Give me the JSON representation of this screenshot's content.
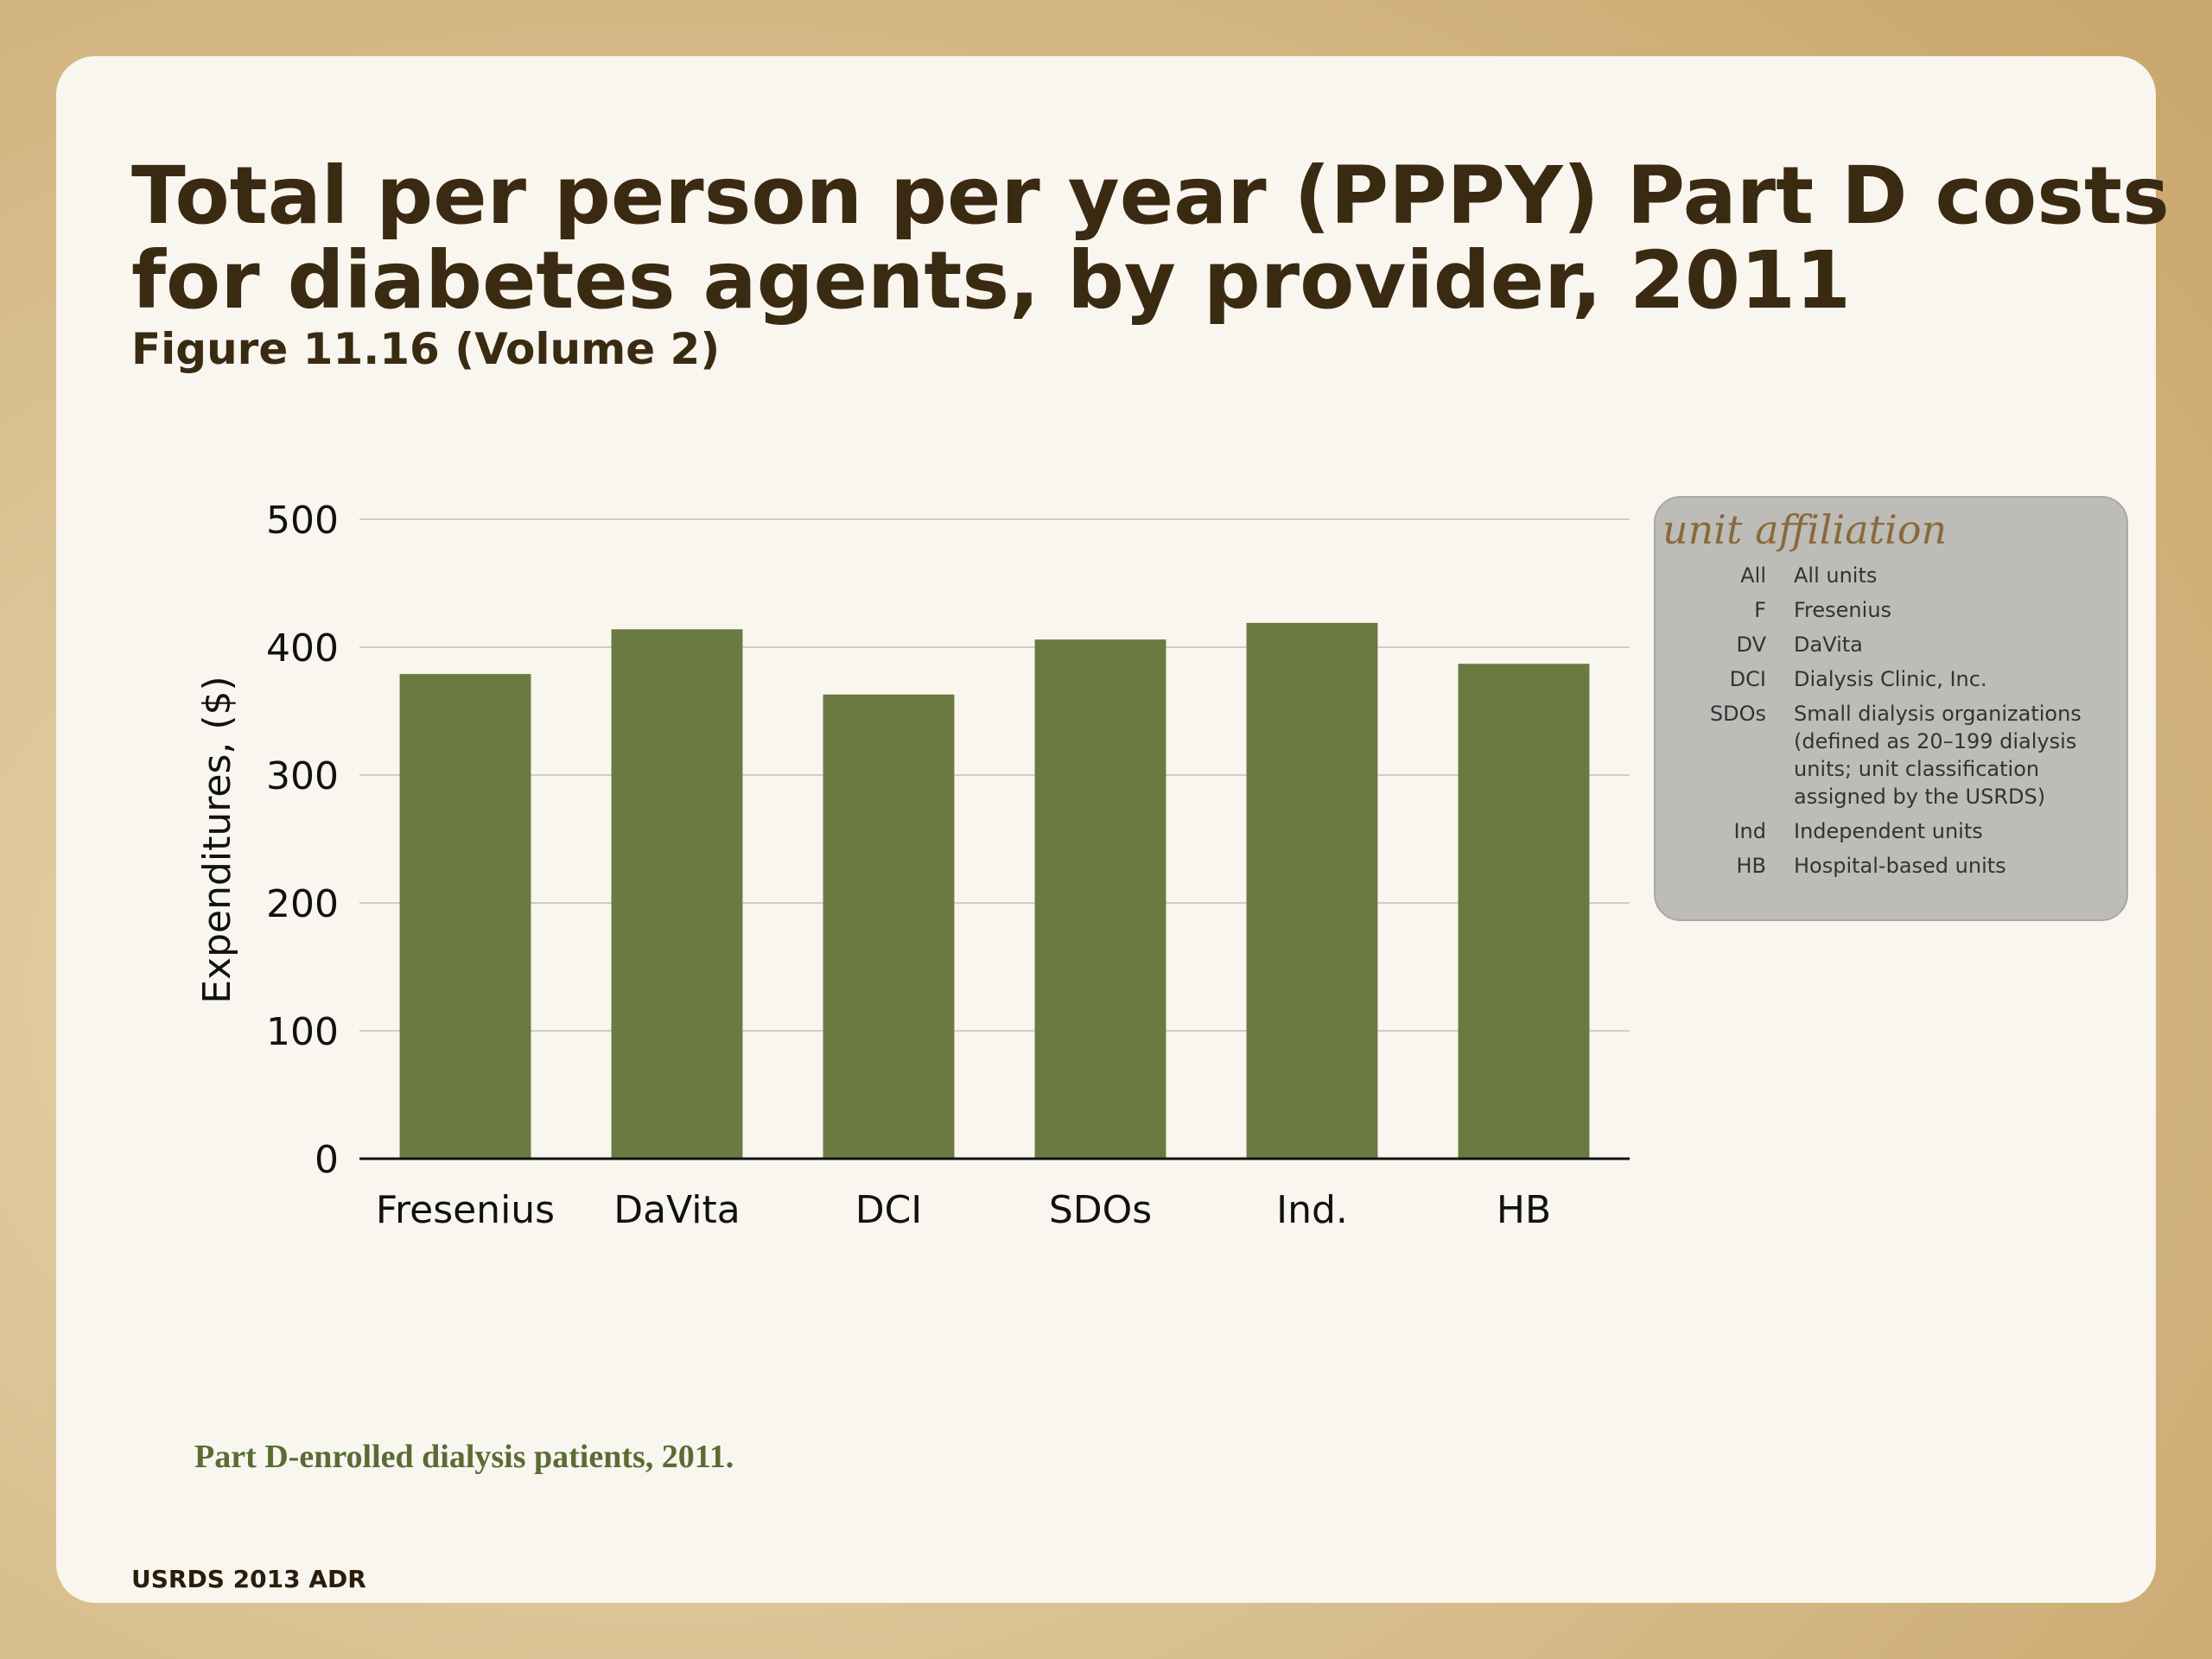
{
  "chart_data": {
    "type": "bar",
    "title": [
      "Total per person per year (PPPY) Part D costs",
      "for diabetes agents, by provider, 2011"
    ],
    "subtitle": "Figure 11.16 (Volume 2)",
    "ylabel": "Expenditures, ($)",
    "categories": [
      "Fresenius",
      "DaVita",
      "DCI",
      "SDOs",
      "Ind.",
      "HB"
    ],
    "values": [
      379,
      414,
      363,
      406,
      419,
      387
    ],
    "color": "#6b7a41",
    "ylim": [
      0,
      500
    ],
    "yticks": [
      0,
      100,
      200,
      300,
      400,
      500
    ],
    "grid": true
  },
  "legend_box": {
    "title": "unit affiliation",
    "entries": [
      {
        "abbr": "All",
        "lines": [
          "All units"
        ]
      },
      {
        "abbr": "F",
        "lines": [
          "Fresenius"
        ]
      },
      {
        "abbr": "DV",
        "lines": [
          "DaVita"
        ]
      },
      {
        "abbr": "DCI",
        "lines": [
          "Dialysis Clinic, Inc."
        ]
      },
      {
        "abbr": "SDOs",
        "lines": [
          "Small dialysis organizations",
          "(defined as 20–199 dialysis",
          "units; unit classification",
          "assigned by the USRDS)"
        ]
      },
      {
        "abbr": "Ind",
        "lines": [
          "Independent units"
        ]
      },
      {
        "abbr": "HB",
        "lines": [
          "Hospital-based units"
        ]
      }
    ]
  },
  "note": "Part D-enrolled dialysis patients, 2011.",
  "footer": "USRDS 2013 ADR"
}
